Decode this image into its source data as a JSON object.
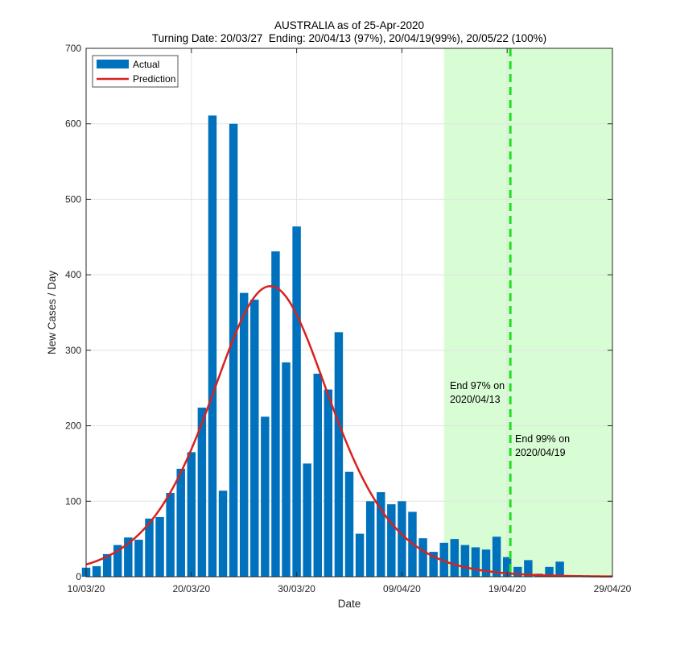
{
  "chart_data": {
    "type": "bar",
    "title": "AUSTRALIA as of 25-Apr-2020",
    "subtitle": "Turning Date: 20/03/27  Ending: 20/04/13 (97%), 20/04/19(99%), 20/05/22 (100%)",
    "xlabel": "Date",
    "ylabel": "New Cases / Day",
    "ylim": [
      0,
      700
    ],
    "xlim_days": [
      0,
      50
    ],
    "yticks": [
      0,
      100,
      200,
      300,
      400,
      500,
      600,
      700
    ],
    "xticks": [
      {
        "day": 0,
        "label": "10/03/20"
      },
      {
        "day": 10,
        "label": "20/03/20"
      },
      {
        "day": 20,
        "label": "30/03/20"
      },
      {
        "day": 30,
        "label": "09/04/20"
      },
      {
        "day": 40,
        "label": "19/04/20"
      },
      {
        "day": 50,
        "label": "29/04/20"
      }
    ],
    "grid": true,
    "legend_position": "top-left",
    "series": [
      {
        "name": "Actual",
        "type": "bar",
        "color": "#0072BD",
        "x": [
          0,
          1,
          2,
          3,
          4,
          5,
          6,
          7,
          8,
          9,
          10,
          11,
          12,
          13,
          14,
          15,
          16,
          17,
          18,
          19,
          20,
          21,
          22,
          23,
          24,
          25,
          26,
          27,
          28,
          29,
          30,
          31,
          32,
          33,
          34,
          35,
          36,
          37,
          38,
          39,
          40,
          41,
          42,
          43,
          44,
          45
        ],
        "values": [
          12,
          14,
          30,
          42,
          52,
          49,
          77,
          79,
          111,
          143,
          165,
          224,
          611,
          114,
          600,
          376,
          367,
          212,
          431,
          284,
          464,
          150,
          269,
          248,
          324,
          139,
          57,
          100,
          112,
          96,
          100,
          86,
          51,
          33,
          45,
          50,
          42,
          39,
          36,
          53,
          26,
          13,
          22,
          4,
          13,
          20
        ]
      },
      {
        "name": "Prediction",
        "type": "line",
        "color": "#D9211F",
        "peak": 385,
        "peak_day": 17.5
      }
    ],
    "shaded_region_days": [
      34,
      50
    ],
    "shaded_color": "#D8FCD4",
    "vertical_line": {
      "day": 40.3,
      "color": "#22DD22",
      "style": "dashed"
    },
    "annotations": [
      {
        "lines": [
          "End 97% on",
          "2020/04/13"
        ]
      },
      {
        "lines": [
          "End 99% on",
          "2020/04/19"
        ]
      }
    ]
  }
}
